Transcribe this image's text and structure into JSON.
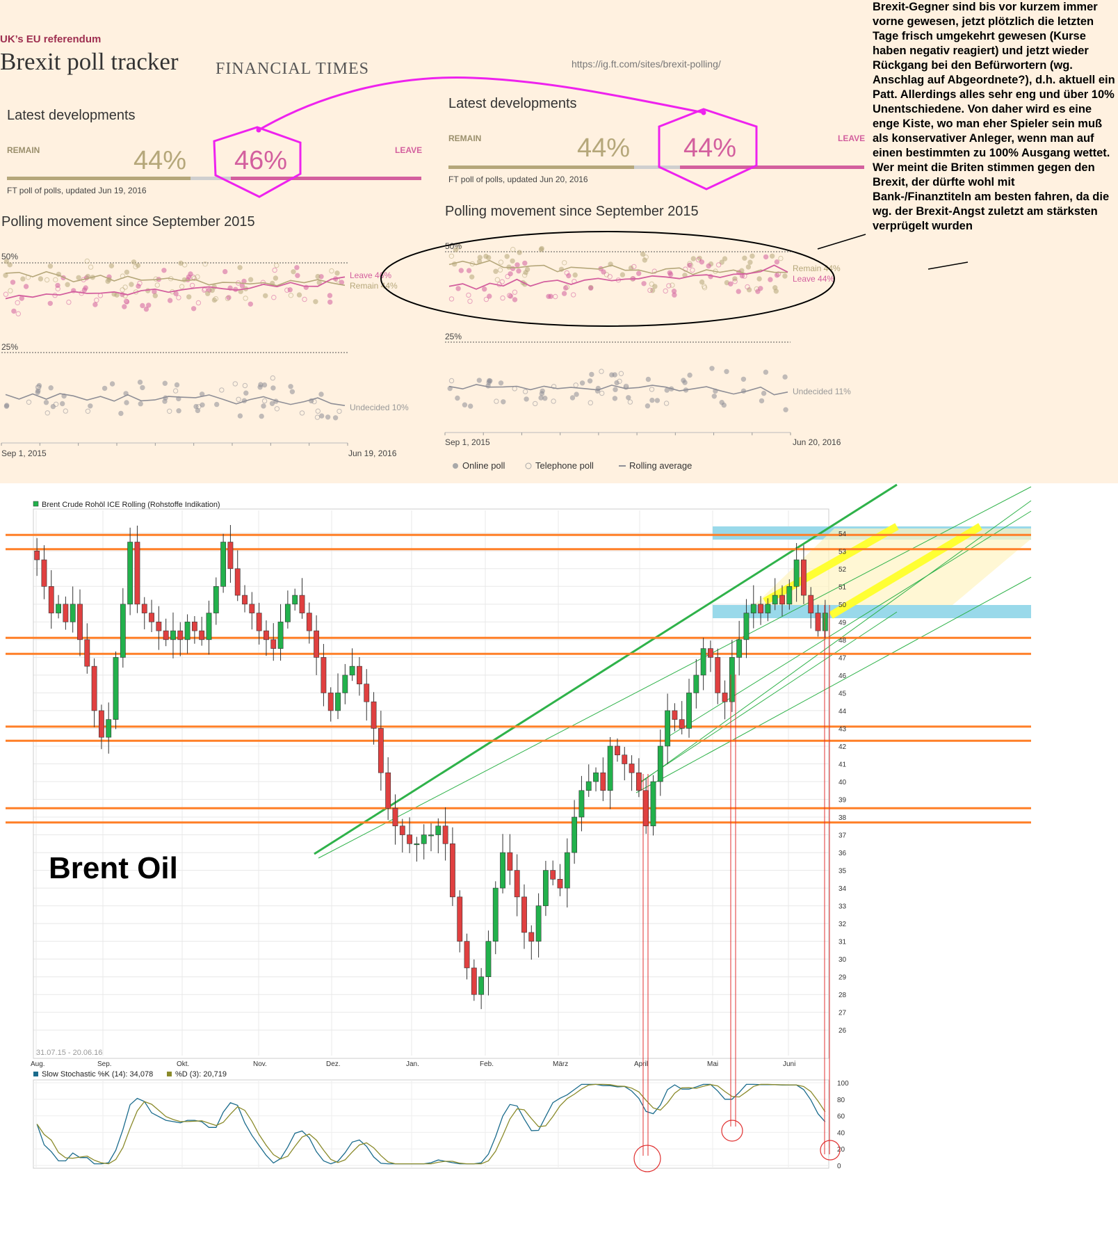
{
  "ft": {
    "kicker": "UK’s EU referendum",
    "title": "Brexit poll tracker",
    "brand": "FINANCIAL TIMES",
    "url": "https://ig.ft.com/sites/brexit-polling/",
    "left": {
      "latest_heading": "Latest developments",
      "remain_label": "REMAIN",
      "leave_label": "LEAVE",
      "remain_pct": "44%",
      "leave_pct": "46%",
      "remain_value": 44,
      "leave_value": 46,
      "footnote": "FT poll of polls, updated Jun 19, 2016",
      "movement_heading": "Polling movement since September 2015",
      "y50": "50%",
      "y25": "25%",
      "line_label_top": "Leave 46%",
      "line_label_bottom": "Remain 44%",
      "undecided_label": "Undecided 10%",
      "x_start": "Sep 1, 2015",
      "x_end": "Jun 19, 2016"
    },
    "right": {
      "latest_heading": "Latest developments",
      "remain_label": "REMAIN",
      "leave_label": "LEAVE",
      "remain_pct": "44%",
      "leave_pct": "44%",
      "remain_value": 44,
      "leave_value": 44,
      "footnote": "FT poll of polls, updated Jun 20, 2016",
      "movement_heading": "Polling movement since September 2015",
      "y50": "50%",
      "y25": "25%",
      "line_label_top": "Remain 44%",
      "line_label_bottom": "Leave 44%",
      "undecided_label": "Undecided 11%",
      "x_start": "Sep 1, 2015",
      "x_end": "Jun 20, 2016"
    },
    "legend": [
      "Online poll",
      "Telephone poll",
      "Rolling average"
    ],
    "colors": {
      "remain": "#b5a77a",
      "leave": "#d35f9e",
      "undecided": "#8e8e96",
      "annotation": "#ee22ee"
    }
  },
  "annotation_note": "Brexit-Gegner sind bis vor kurzem immer vorne gewesen, jetzt plötzlich die letzten Tage frisch umgekehrt gewesen (Kurse haben negativ reagiert) und jetzt wieder Rückgang bei den Befürwortern (wg. Anschlag auf Abgeordnete?), d.h. aktuell ein Patt. Allerdings alles sehr eng und über 10% Unentschiedene. Von daher  wird es eine enge Kiste, wo man eher Spieler sein muß als konservativer Anleger, wenn man auf einen bestimmten zu 100% Ausgang wettet. Wer meint die Briten stimmen gegen den Brexit, der dürfte wohl mit Bank-/Finanztiteln am besten fahren, da die wg. der Brexit-Angst zuletzt am stärksten verprügelt wurden",
  "brent": {
    "legend": "Brent Crude Rohöl ICE Rolling (Rohstoffe Indikation)",
    "big_label": "Brent Oil",
    "date_range": "31.07.15 - 20.06.16",
    "stoch_k_label": "Slow Stochastic %K (14): 34,078",
    "stoch_d_label": "%D (3): 20,719",
    "colors": {
      "up": "#22b14c",
      "down": "#e04040",
      "level": "#ff7f27",
      "zone": "#99d9ea",
      "channel": "#2fb24a",
      "band": "#ffff33"
    }
  },
  "chart_data": [
    {
      "type": "line",
      "title": "Polling movement since September 2015",
      "x_range": [
        "2015-09-01",
        "2016-06-19"
      ],
      "y_ticks": [
        "50%",
        "25%"
      ],
      "series": [
        {
          "name": "Leave",
          "final_value": 46,
          "values": [
            40,
            41,
            40,
            41,
            41,
            42,
            41,
            42,
            42,
            41,
            42,
            43,
            42,
            42,
            43,
            43,
            43,
            42,
            43,
            44,
            43,
            44,
            44,
            44,
            45,
            46
          ]
        },
        {
          "name": "Remain",
          "final_value": 44,
          "values": [
            47,
            47,
            46,
            47,
            46,
            45,
            46,
            46,
            45,
            46,
            45,
            45,
            46,
            45,
            45,
            44,
            45,
            45,
            44,
            45,
            44,
            45,
            44,
            45,
            44,
            44
          ]
        },
        {
          "name": "Undecided",
          "final_value": 10,
          "values": [
            13,
            12,
            13,
            12,
            13,
            13,
            12,
            13,
            12,
            13,
            12,
            12,
            13,
            12,
            12,
            13,
            12,
            11,
            12,
            13,
            12,
            11,
            11,
            12,
            11,
            10
          ]
        }
      ]
    },
    {
      "type": "line",
      "title": "Polling movement since September 2015",
      "x_range": [
        "2015-09-01",
        "2016-06-20"
      ],
      "y_ticks": [
        "50%",
        "25%"
      ],
      "series": [
        {
          "name": "Remain",
          "final_value": 44,
          "values": [
            47,
            47,
            46,
            47,
            46,
            45,
            46,
            46,
            45,
            46,
            45,
            45,
            46,
            45,
            45,
            44,
            45,
            45,
            44,
            45,
            44,
            45,
            44,
            45,
            44,
            44
          ]
        },
        {
          "name": "Leave",
          "final_value": 44,
          "values": [
            40,
            41,
            40,
            41,
            41,
            42,
            41,
            42,
            42,
            41,
            42,
            43,
            42,
            42,
            43,
            43,
            43,
            42,
            43,
            44,
            43,
            44,
            44,
            44,
            46,
            44
          ]
        },
        {
          "name": "Undecided",
          "final_value": 11,
          "values": [
            13,
            12,
            13,
            12,
            13,
            13,
            12,
            13,
            12,
            13,
            12,
            12,
            13,
            12,
            12,
            13,
            12,
            11,
            12,
            13,
            12,
            11,
            11,
            12,
            11,
            11
          ]
        }
      ]
    },
    {
      "type": "candlestick",
      "title": "Brent Crude Rohöl ICE Rolling (Rohstoffe Indikation)",
      "x_range": [
        "2015-07-31",
        "2016-06-20"
      ],
      "x_ticks": [
        "Aug.",
        "Sep.",
        "Okt.",
        "Nov.",
        "Dez.",
        "Jan.",
        "Feb.",
        "März",
        "April",
        "Mai",
        "Juni"
      ],
      "y_ticks": [
        26,
        27,
        28,
        29,
        30,
        31,
        32,
        33,
        34,
        35,
        36,
        37,
        38,
        39,
        40,
        41,
        42,
        43,
        44,
        45,
        46,
        47,
        48,
        49,
        50,
        51,
        52,
        53,
        54
      ],
      "ylim": [
        25.5,
        54.5
      ],
      "close": [
        52.5,
        51,
        49.5,
        50,
        49,
        50,
        48,
        46.5,
        44,
        42.5,
        43.5,
        47,
        50,
        53.5,
        50,
        49.5,
        49,
        48.5,
        48,
        48.5,
        48,
        49,
        48.5,
        48,
        49.5,
        51,
        53.5,
        52,
        50.5,
        50,
        49.5,
        48.5,
        48,
        47.5,
        49,
        50,
        50.5,
        49.5,
        48.5,
        47,
        45,
        44,
        45,
        46,
        46.5,
        45.5,
        44.5,
        43,
        40.5,
        38.5,
        37.5,
        37,
        36.5,
        36.5,
        37,
        37,
        37.5,
        36.5,
        33.5,
        31,
        29.5,
        28,
        29,
        31,
        34,
        36,
        35,
        33.5,
        31.5,
        31,
        33,
        35,
        34.5,
        34,
        36,
        38,
        39.5,
        40,
        40.5,
        39.5,
        42,
        41.5,
        41,
        40.5,
        39.5,
        37.5,
        40,
        42,
        44,
        43.5,
        43,
        45,
        46,
        47.5,
        47,
        45,
        44.5,
        47,
        48,
        49.5,
        50,
        49.5,
        50,
        50.5,
        50,
        51,
        52.5,
        50.5,
        49.5,
        48.5,
        49.5
      ]
    },
    {
      "type": "line",
      "title": "Slow Stochastic %K (14)",
      "x_range": [
        "2015-07-31",
        "2016-06-20"
      ],
      "y_ticks": [
        0,
        20,
        40,
        60,
        80,
        100
      ],
      "ylim": [
        0,
        100
      ],
      "series": [
        {
          "name": "Slow Stochastic %K (14)",
          "final_value": 34.078
        },
        {
          "name": "%D (3)",
          "final_value": 20.719
        }
      ]
    }
  ]
}
